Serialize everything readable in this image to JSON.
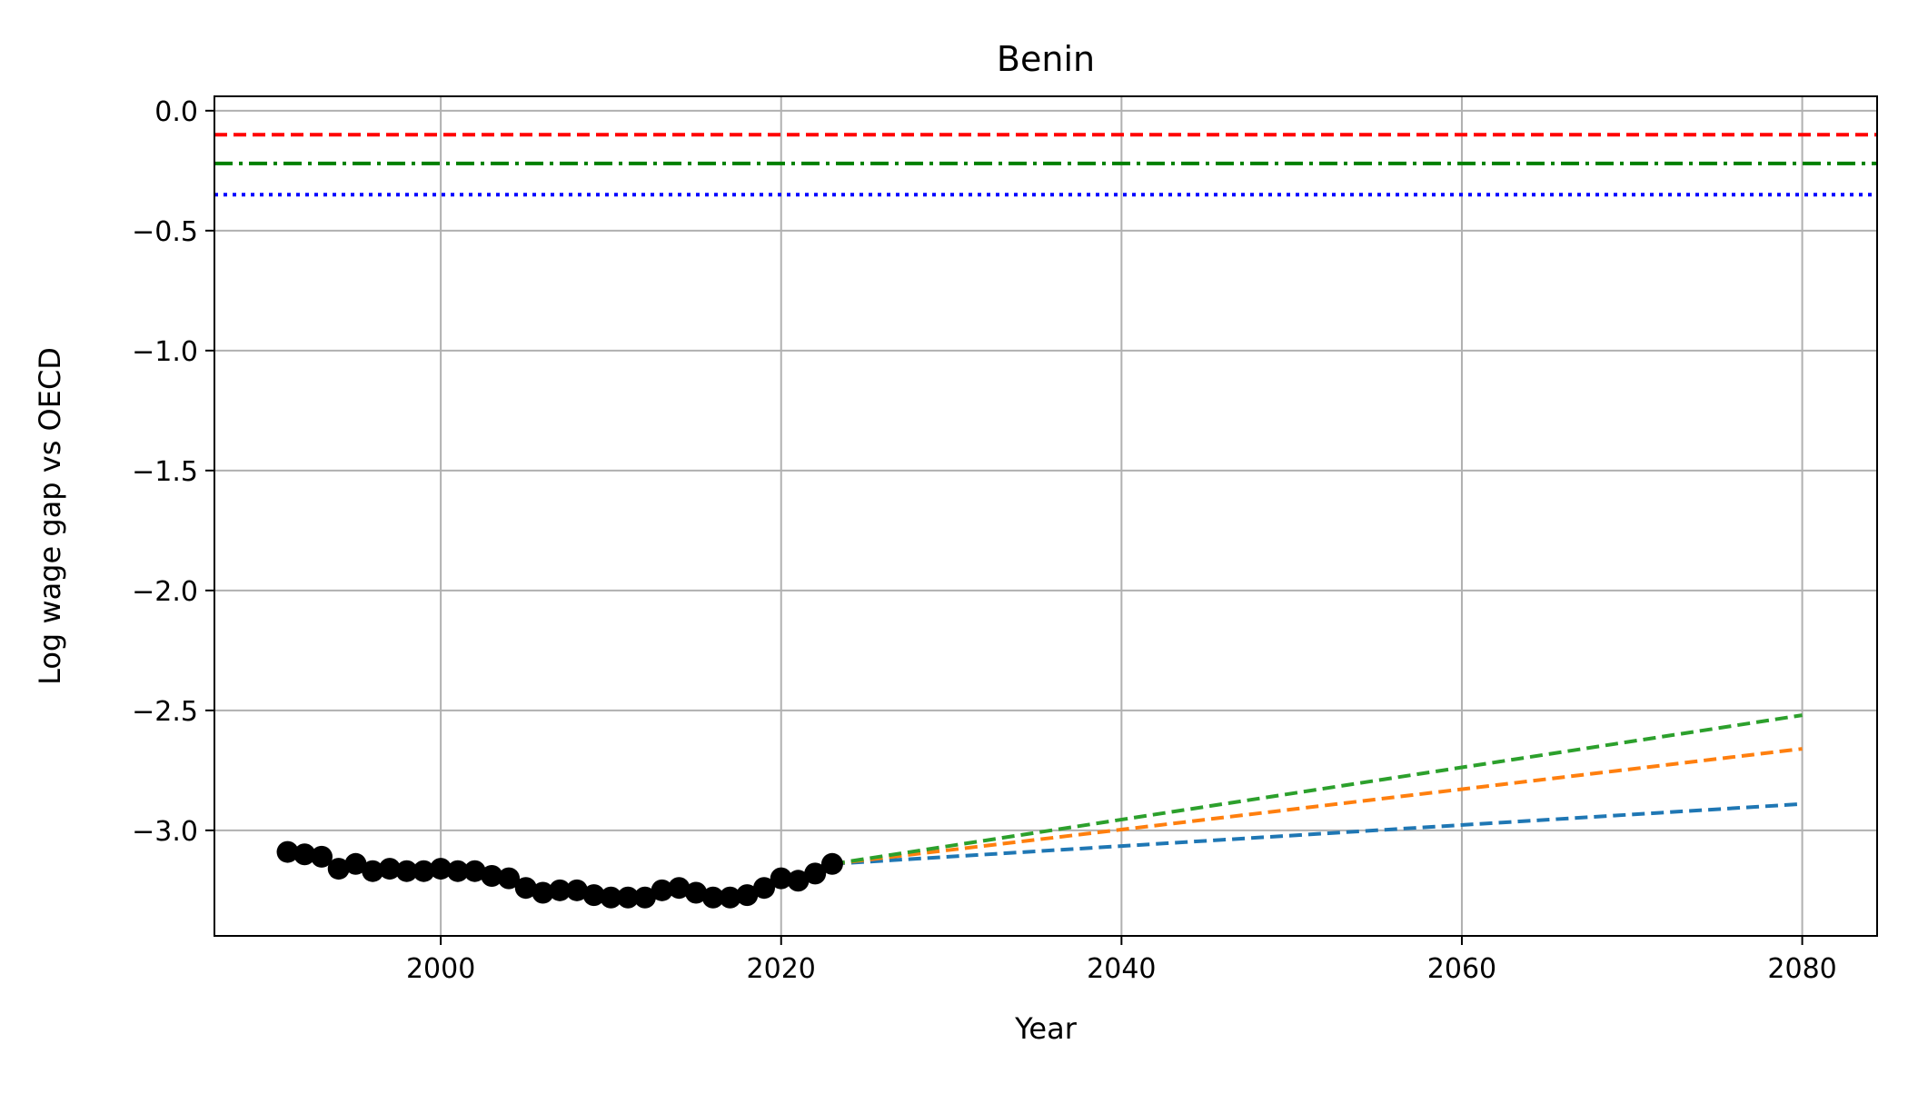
{
  "chart_data": {
    "type": "line",
    "title": "Benin",
    "xlabel": "Year",
    "ylabel": "Log wage gap vs OECD",
    "xlim": [
      1986.7,
      2084.4
    ],
    "ylim": [
      -3.44,
      0.06
    ],
    "x_ticks": [
      2000,
      2020,
      2040,
      2060,
      2080
    ],
    "y_ticks": [
      0.0,
      -0.5,
      -1.0,
      -1.5,
      -2.0,
      -2.5,
      -3.0
    ],
    "x_tick_labels": [
      "2000",
      "2020",
      "2040",
      "2060",
      "2080"
    ],
    "y_tick_labels": [
      "0.0",
      "−0.5",
      "−1.0",
      "−1.5",
      "−2.0",
      "−2.5",
      "−3.0"
    ],
    "grid": true,
    "reference_lines": [
      {
        "y": -0.1,
        "color": "#ff0000",
        "style": "dashed"
      },
      {
        "y": -0.22,
        "color": "#008000",
        "style": "dashdot"
      },
      {
        "y": -0.35,
        "color": "#0000ff",
        "style": "dotted"
      }
    ],
    "historical": {
      "color": "#000000",
      "x": [
        1991,
        1992,
        1993,
        1994,
        1995,
        1996,
        1997,
        1998,
        1999,
        2000,
        2001,
        2002,
        2003,
        2004,
        2005,
        2006,
        2007,
        2008,
        2009,
        2010,
        2011,
        2012,
        2013,
        2014,
        2015,
        2016,
        2017,
        2018,
        2019,
        2020,
        2021,
        2022,
        2023
      ],
      "y": [
        -3.09,
        -3.1,
        -3.11,
        -3.16,
        -3.14,
        -3.17,
        -3.16,
        -3.17,
        -3.17,
        -3.16,
        -3.17,
        -3.17,
        -3.19,
        -3.2,
        -3.24,
        -3.26,
        -3.25,
        -3.25,
        -3.27,
        -3.28,
        -3.28,
        -3.28,
        -3.25,
        -3.24,
        -3.26,
        -3.28,
        -3.28,
        -3.27,
        -3.24,
        -3.2,
        -3.21,
        -3.18,
        -3.14
      ]
    },
    "projections": [
      {
        "color": "#1f77b4",
        "x": [
          2023,
          2080
        ],
        "y": [
          -3.14,
          -2.89
        ]
      },
      {
        "color": "#ff7f0e",
        "x": [
          2023,
          2080
        ],
        "y": [
          -3.14,
          -2.66
        ]
      },
      {
        "color": "#2ca02c",
        "x": [
          2023,
          2080
        ],
        "y": [
          -3.14,
          -2.52
        ]
      }
    ]
  }
}
